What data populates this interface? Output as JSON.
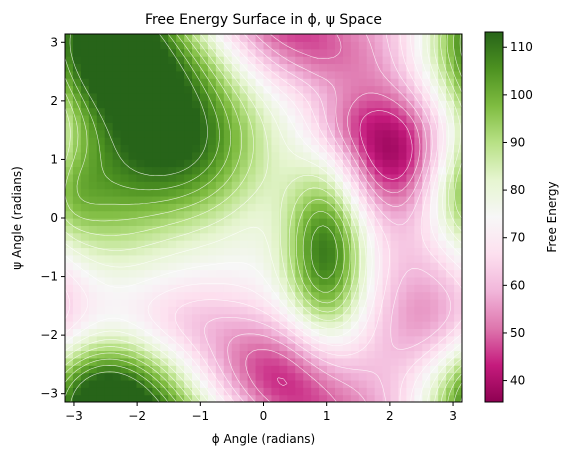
{
  "chart_data": {
    "type": "heatmap",
    "title": "Free Energy Surface in ϕ, ψ Space",
    "xlabel": "ϕ Angle (radians)",
    "ylabel": "ψ Angle (radians)",
    "colorbar_label": "Free Energy",
    "xlim": [
      -3.14159,
      3.14159
    ],
    "ylim": [
      -3.14159,
      3.14159
    ],
    "x_ticks": [
      {
        "value": -3,
        "label": "−3"
      },
      {
        "value": -2,
        "label": "−2"
      },
      {
        "value": -1,
        "label": "−1"
      },
      {
        "value": 0,
        "label": "0"
      },
      {
        "value": 1,
        "label": "1"
      },
      {
        "value": 2,
        "label": "2"
      },
      {
        "value": 3,
        "label": "3"
      }
    ],
    "y_ticks": [
      {
        "value": -3,
        "label": "−3"
      },
      {
        "value": -2,
        "label": "−2"
      },
      {
        "value": -1,
        "label": "−1"
      },
      {
        "value": 0,
        "label": "0"
      },
      {
        "value": 1,
        "label": "1"
      },
      {
        "value": 2,
        "label": "2"
      },
      {
        "value": 3,
        "label": "3"
      }
    ],
    "colorbar_range": [
      35.5,
      113.2
    ],
    "colorbar_ticks": [
      {
        "value": 40,
        "label": "40"
      },
      {
        "value": 50,
        "label": "50"
      },
      {
        "value": 60,
        "label": "60"
      },
      {
        "value": 70,
        "label": "70"
      },
      {
        "value": 80,
        "label": "80"
      },
      {
        "value": 90,
        "label": "90"
      },
      {
        "value": 100,
        "label": "100"
      },
      {
        "value": 110,
        "label": "110"
      }
    ],
    "colormap": "PiYG",
    "colormap_stops": [
      "#8e0152",
      "#c51b7d",
      "#de77ae",
      "#f1b6da",
      "#fde0ef",
      "#f7f7f7",
      "#e6f5d0",
      "#b8e186",
      "#7fbc41",
      "#4d9221",
      "#276419"
    ],
    "grid": false,
    "contour_color": "#ffffff",
    "field": {
      "base": 74,
      "features": [
        {
          "phi": -2.3,
          "psi": 2.6,
          "amplitude": 40,
          "width_phi": 1.1,
          "width_psi": 0.8
        },
        {
          "phi": -1.3,
          "psi": 1.2,
          "amplitude": 34,
          "width_phi": 0.9,
          "width_psi": 0.9
        },
        {
          "phi": -2.8,
          "psi": 0.4,
          "amplitude": 20,
          "width_phi": 0.8,
          "width_psi": 1.0
        },
        {
          "phi": 1.0,
          "psi": -0.5,
          "amplitude": 38,
          "width_phi": 0.45,
          "width_psi": 1.1
        },
        {
          "phi": -2.7,
          "psi": -2.8,
          "amplitude": 26,
          "width_phi": 0.8,
          "width_psi": 0.6
        },
        {
          "phi": 2.1,
          "psi": 1.2,
          "amplitude": -40,
          "width_phi": 0.8,
          "width_psi": 0.9
        },
        {
          "phi": 2.6,
          "psi": -1.8,
          "amplitude": -22,
          "width_phi": 0.7,
          "width_psi": 1.2
        },
        {
          "phi": 0.1,
          "psi": -2.5,
          "amplitude": -24,
          "width_phi": 0.9,
          "width_psi": 0.6
        },
        {
          "phi": 0.8,
          "psi": 2.9,
          "amplitude": -20,
          "width_phi": 1.0,
          "width_psi": 0.6
        },
        {
          "phi": -1.2,
          "psi": -1.7,
          "amplitude": -10,
          "width_phi": 0.8,
          "width_psi": 0.5
        },
        {
          "phi": 1.2,
          "psi": 1.6,
          "amplitude": -6,
          "width_phi": 0.4,
          "width_psi": 0.4
        },
        {
          "phi": 3.1,
          "psi": 0.5,
          "amplitude": 14,
          "width_phi": 0.4,
          "width_psi": 0.6
        }
      ]
    }
  }
}
